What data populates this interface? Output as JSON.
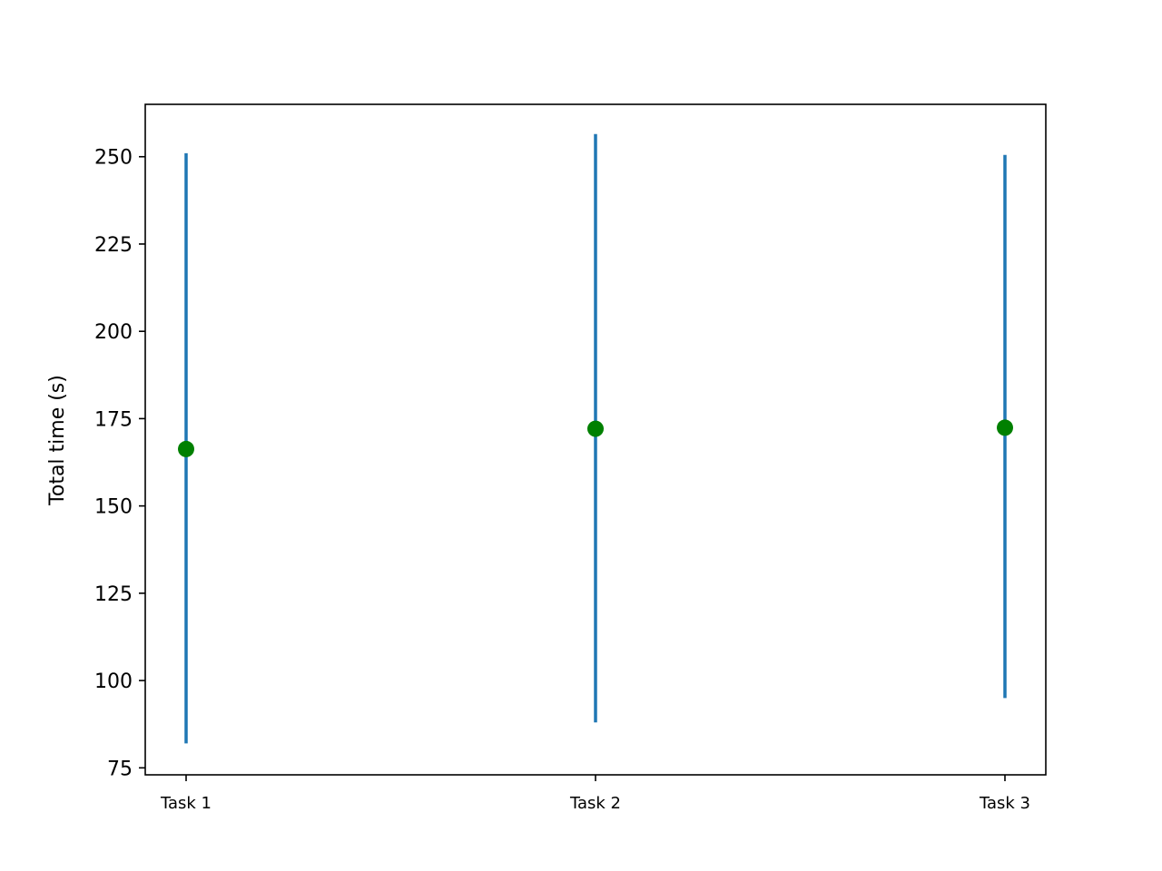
{
  "chart_data": {
    "type": "errorbar",
    "categories": [
      "Task 1",
      "Task 2",
      "Task 3"
    ],
    "series": [
      {
        "values": [
          166.3,
          172.1,
          172.4
        ],
        "lower": [
          82,
          88,
          95
        ],
        "upper": [
          251,
          256.5,
          250.5
        ]
      }
    ],
    "xlabel": "",
    "ylabel": "Total time (s)",
    "ylim": [
      73,
      265
    ],
    "yticks": [
      75,
      100,
      125,
      150,
      175,
      200,
      225,
      250
    ],
    "grid": false,
    "colors": {
      "marker": "#008000",
      "errorbar": "#1f77b4",
      "axes": "#000000"
    }
  }
}
